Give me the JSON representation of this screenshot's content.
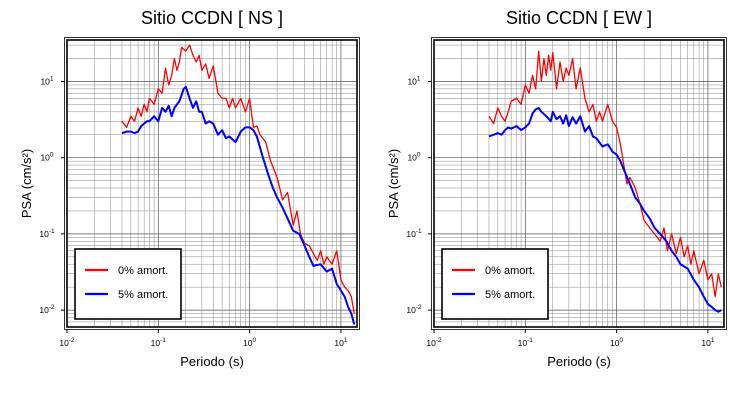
{
  "chart_data": [
    {
      "type": "line",
      "title": "Sitio CCDN [ NS ]",
      "xlabel": "Periodo (s)",
      "ylabel": "PSA (cm/s²)",
      "xscale": "log",
      "yscale": "log",
      "xlim": [
        0.01,
        15
      ],
      "ylim": [
        0.006,
        35
      ],
      "grid": true,
      "legend_position": "bottom-left",
      "x_ticks": [
        {
          "value": 0.01,
          "base": "10",
          "exp": "-2"
        },
        {
          "value": 0.1,
          "base": "10",
          "exp": "-1"
        },
        {
          "value": 1,
          "base": "10",
          "exp": "0"
        },
        {
          "value": 10,
          "base": "10",
          "exp": "1"
        }
      ],
      "y_ticks": [
        {
          "value": 0.01,
          "base": "10",
          "exp": "-2"
        },
        {
          "value": 0.1,
          "base": "10",
          "exp": "-1"
        },
        {
          "value": 1,
          "base": "10",
          "exp": "0"
        },
        {
          "value": 10,
          "base": "10",
          "exp": "1"
        }
      ],
      "series": [
        {
          "name": "0% amort.",
          "color": "#ff0000",
          "x": [
            0.04,
            0.045,
            0.05,
            0.055,
            0.06,
            0.065,
            0.07,
            0.075,
            0.08,
            0.085,
            0.09,
            0.1,
            0.11,
            0.12,
            0.13,
            0.14,
            0.15,
            0.16,
            0.17,
            0.18,
            0.2,
            0.22,
            0.24,
            0.26,
            0.28,
            0.3,
            0.33,
            0.36,
            0.4,
            0.45,
            0.5,
            0.55,
            0.6,
            0.65,
            0.7,
            0.8,
            0.9,
            1.0,
            1.1,
            1.2,
            1.3,
            1.5,
            1.7,
            2.0,
            2.3,
            2.6,
            3.0,
            3.3,
            3.6,
            4.0,
            4.5,
            5.0,
            5.5,
            6.0,
            6.5,
            7.0,
            8.0,
            9.0,
            10.0,
            11.0,
            12.0,
            13.0,
            14.0
          ],
          "y": [
            3.0,
            2.5,
            3.5,
            3.0,
            4.5,
            3.5,
            5.0,
            4.0,
            6.0,
            5.5,
            5.0,
            8.0,
            7.0,
            15.0,
            9.0,
            12.0,
            20.0,
            14.0,
            18.0,
            28.0,
            25.0,
            30.0,
            22.0,
            18.0,
            22.0,
            14.0,
            17.0,
            11.0,
            16.0,
            7.0,
            6.0,
            6.0,
            4.5,
            6.0,
            4.5,
            6.0,
            4.0,
            6.0,
            2.5,
            2.6,
            2.0,
            1.6,
            0.9,
            0.55,
            0.28,
            0.35,
            0.13,
            0.2,
            0.1,
            0.075,
            0.07,
            0.055,
            0.045,
            0.06,
            0.04,
            0.05,
            0.04,
            0.06,
            0.025,
            0.02,
            0.018,
            0.015,
            0.009
          ]
        },
        {
          "name": "5% amort.",
          "color": "#0000ff",
          "x": [
            0.04,
            0.045,
            0.05,
            0.055,
            0.06,
            0.065,
            0.07,
            0.075,
            0.08,
            0.09,
            0.1,
            0.11,
            0.12,
            0.13,
            0.14,
            0.15,
            0.17,
            0.19,
            0.2,
            0.22,
            0.24,
            0.26,
            0.28,
            0.3,
            0.33,
            0.36,
            0.4,
            0.45,
            0.5,
            0.55,
            0.6,
            0.7,
            0.8,
            0.9,
            1.0,
            1.1,
            1.2,
            1.4,
            1.6,
            1.8,
            2.0,
            2.3,
            2.6,
            3.0,
            3.5,
            4.0,
            4.5,
            5.0,
            6.0,
            7.0,
            8.0,
            9.0,
            10.0,
            11.0,
            12.0,
            13.0,
            14.0
          ],
          "y": [
            2.1,
            2.2,
            2.2,
            2.1,
            2.2,
            2.6,
            2.8,
            3.0,
            3.0,
            3.5,
            3.0,
            4.5,
            4.0,
            4.8,
            3.5,
            4.5,
            5.5,
            8.0,
            8.5,
            6.0,
            4.5,
            5.5,
            4.0,
            4.0,
            2.8,
            3.0,
            2.8,
            2.0,
            2.3,
            1.8,
            1.9,
            1.6,
            2.2,
            2.5,
            2.5,
            2.3,
            1.9,
            1.0,
            0.6,
            0.4,
            0.3,
            0.22,
            0.16,
            0.11,
            0.1,
            0.07,
            0.05,
            0.038,
            0.04,
            0.032,
            0.035,
            0.022,
            0.018,
            0.015,
            0.011,
            0.009,
            0.0065
          ]
        }
      ]
    },
    {
      "type": "line",
      "title": "Sitio CCDN [ EW ]",
      "xlabel": "Periodo (s)",
      "ylabel": "PSA (cm/s²)",
      "xscale": "log",
      "yscale": "log",
      "xlim": [
        0.01,
        15
      ],
      "ylim": [
        0.006,
        35
      ],
      "grid": true,
      "legend_position": "bottom-left",
      "x_ticks": [
        {
          "value": 0.01,
          "base": "10",
          "exp": "-2"
        },
        {
          "value": 0.1,
          "base": "10",
          "exp": "-1"
        },
        {
          "value": 1,
          "base": "10",
          "exp": "0"
        },
        {
          "value": 10,
          "base": "10",
          "exp": "1"
        }
      ],
      "y_ticks": [
        {
          "value": 0.01,
          "base": "10",
          "exp": "-2"
        },
        {
          "value": 0.1,
          "base": "10",
          "exp": "-1"
        },
        {
          "value": 1,
          "base": "10",
          "exp": "0"
        },
        {
          "value": 10,
          "base": "10",
          "exp": "1"
        }
      ],
      "series": [
        {
          "name": "0% amort.",
          "color": "#ff0000",
          "x": [
            0.04,
            0.045,
            0.05,
            0.055,
            0.06,
            0.065,
            0.07,
            0.08,
            0.09,
            0.1,
            0.11,
            0.12,
            0.13,
            0.14,
            0.15,
            0.16,
            0.17,
            0.18,
            0.19,
            0.2,
            0.22,
            0.24,
            0.26,
            0.28,
            0.3,
            0.33,
            0.36,
            0.4,
            0.45,
            0.5,
            0.55,
            0.6,
            0.65,
            0.7,
            0.8,
            0.9,
            1.0,
            1.1,
            1.2,
            1.3,
            1.4,
            1.6,
            1.8,
            2.0,
            2.3,
            2.6,
            3.0,
            3.3,
            3.6,
            4.0,
            4.5,
            5.0,
            5.5,
            6.0,
            6.5,
            7.0,
            8.0,
            9.0,
            10.0,
            11.0,
            12.0,
            13.0,
            14.0
          ],
          "y": [
            3.5,
            2.8,
            4.5,
            3.5,
            3.0,
            4.0,
            5.5,
            6.0,
            5.0,
            9.0,
            7.0,
            12.0,
            8.0,
            25.0,
            10.0,
            20.0,
            12.0,
            22.0,
            14.0,
            24.0,
            8.0,
            18.0,
            10.0,
            15.0,
            12.0,
            20.0,
            8.0,
            15.0,
            6.0,
            4.0,
            5.0,
            3.0,
            4.0,
            3.0,
            5.0,
            3.0,
            2.5,
            1.5,
            0.8,
            0.45,
            0.55,
            0.4,
            0.25,
            0.15,
            0.12,
            0.1,
            0.08,
            0.12,
            0.06,
            0.1,
            0.055,
            0.09,
            0.05,
            0.07,
            0.04,
            0.06,
            0.03,
            0.045,
            0.025,
            0.03,
            0.015,
            0.03,
            0.02
          ]
        },
        {
          "name": "5% amort.",
          "color": "#0000ff",
          "x": [
            0.04,
            0.045,
            0.05,
            0.055,
            0.06,
            0.065,
            0.07,
            0.08,
            0.09,
            0.1,
            0.11,
            0.12,
            0.13,
            0.14,
            0.15,
            0.17,
            0.19,
            0.2,
            0.22,
            0.24,
            0.26,
            0.28,
            0.3,
            0.33,
            0.36,
            0.4,
            0.45,
            0.5,
            0.55,
            0.6,
            0.7,
            0.8,
            0.9,
            1.0,
            1.1,
            1.2,
            1.4,
            1.6,
            1.8,
            2.0,
            2.3,
            2.6,
            3.0,
            3.5,
            4.0,
            4.5,
            5.0,
            6.0,
            7.0,
            8.0,
            9.0,
            10.0,
            11.0,
            12.0,
            13.0,
            14.0
          ],
          "y": [
            1.9,
            2.0,
            2.1,
            2.0,
            2.3,
            2.5,
            2.4,
            2.6,
            2.3,
            2.5,
            2.8,
            3.8,
            4.3,
            4.5,
            4.0,
            3.5,
            3.0,
            4.0,
            3.2,
            3.5,
            2.8,
            3.6,
            2.6,
            3.4,
            2.8,
            3.5,
            2.2,
            2.6,
            1.9,
            1.8,
            1.4,
            1.5,
            1.2,
            1.1,
            0.9,
            0.7,
            0.45,
            0.3,
            0.25,
            0.2,
            0.16,
            0.12,
            0.1,
            0.08,
            0.06,
            0.05,
            0.04,
            0.035,
            0.025,
            0.02,
            0.015,
            0.012,
            0.011,
            0.01,
            0.0095,
            0.01
          ]
        }
      ]
    }
  ]
}
